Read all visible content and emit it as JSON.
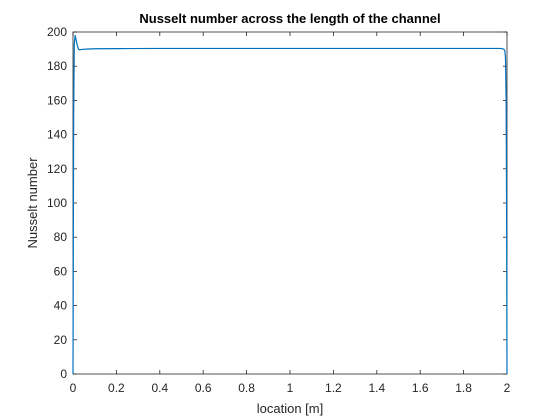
{
  "chart_data": {
    "type": "line",
    "title": "Nusselt number across the length of the channel",
    "xlabel": "location [m]",
    "ylabel": "Nusselt number",
    "xlim": [
      0,
      2
    ],
    "ylim": [
      0,
      200
    ],
    "xticks": [
      "0",
      "0.2",
      "0.4",
      "0.6",
      "0.8",
      "1",
      "1.2",
      "1.4",
      "1.6",
      "1.8",
      "2"
    ],
    "yticks": [
      "0",
      "20",
      "40",
      "60",
      "80",
      "100",
      "120",
      "140",
      "160",
      "180",
      "200"
    ],
    "grid": false,
    "series": [
      {
        "color": "#0072BD",
        "x": [
          0,
          0.003,
          0.006,
          0.01,
          0.015,
          0.02,
          0.025,
          0.03,
          0.04,
          0.06,
          0.1,
          0.2,
          0.4,
          0.8,
          1.2,
          1.6,
          1.9,
          1.97,
          1.985,
          1.99,
          1.993,
          1.996,
          1.998,
          2.0
        ],
        "y": [
          0,
          150,
          193,
          198,
          195,
          192,
          190,
          189.5,
          189.8,
          190,
          190.2,
          190.3,
          190.4,
          190.4,
          190.4,
          190.4,
          190.4,
          190.4,
          190,
          189,
          185,
          160,
          100,
          0
        ]
      }
    ]
  }
}
